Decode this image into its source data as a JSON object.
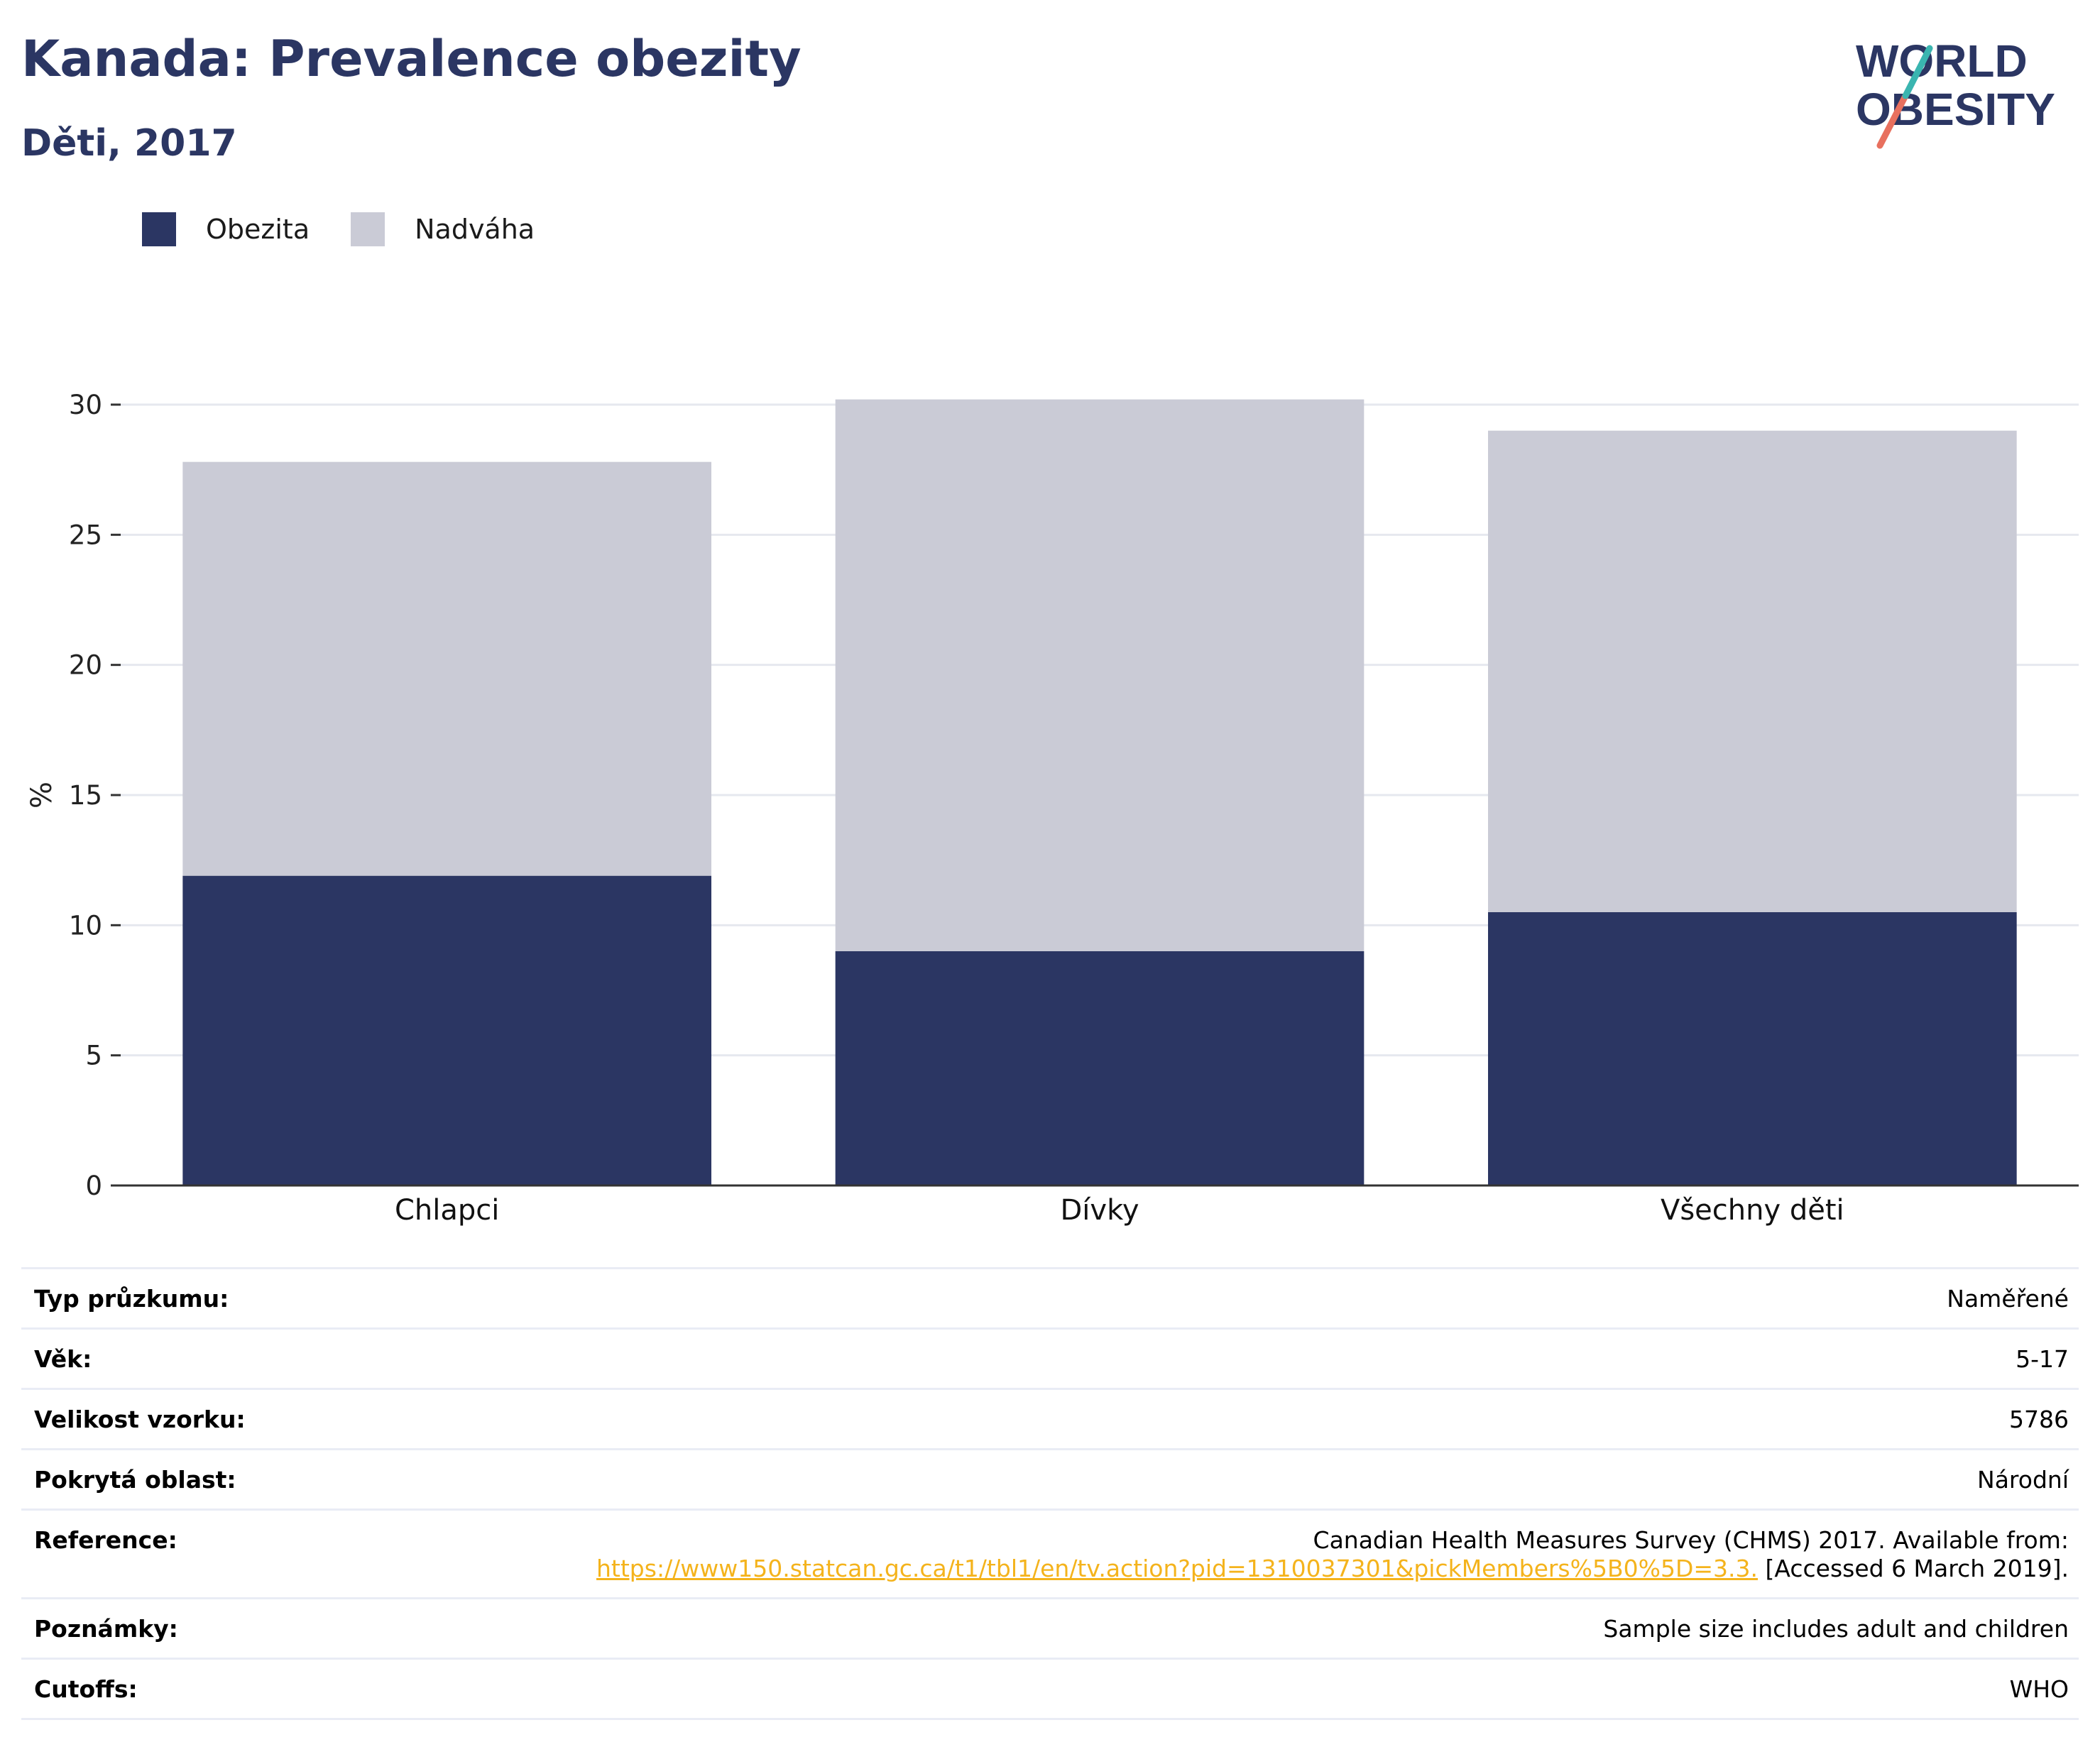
{
  "title": "Kanada: Prevalence obezity",
  "subtitle": "Děti, 2017",
  "logo": {
    "line1": "WORLD",
    "line2": "OBESITY"
  },
  "legend": [
    {
      "label": "Obezita",
      "color": "#2b3663"
    },
    {
      "label": "Nadváha",
      "color": "#cacbd6"
    }
  ],
  "chart_data": {
    "type": "bar",
    "stacked": true,
    "categories": [
      "Chlapci",
      "Dívky",
      "Všechny děti"
    ],
    "series": [
      {
        "name": "Obezita",
        "values": [
          11.9,
          9.0,
          10.5
        ],
        "color": "#2b3663"
      },
      {
        "name": "Nadváha",
        "values": [
          15.9,
          21.2,
          18.5
        ],
        "color": "#cacbd6"
      }
    ],
    "ylabel": "%",
    "ylim": [
      0,
      30
    ],
    "yticks": [
      0,
      5,
      10,
      15,
      20,
      25,
      30
    ],
    "grid": true,
    "legend_position": "top-left"
  },
  "info": {
    "survey_type": {
      "label": "Typ průzkumu:",
      "value": "Naměřené"
    },
    "age": {
      "label": "Věk:",
      "value": "5-17"
    },
    "sample_size": {
      "label": "Velikost vzorku:",
      "value": "5786"
    },
    "coverage": {
      "label": "Pokrytá oblast:",
      "value": "Národní"
    },
    "reference": {
      "label": "Reference:",
      "text": "Canadian Health Measures Survey (CHMS) 2017. Available from:",
      "link": "https://www150.statcan.gc.ca/t1/tbl1/en/tv.action?pid=1310037301&pickMembers%5B0%5D=3.3.",
      "suffix": " [Accessed 6 March 2019]."
    },
    "notes": {
      "label": "Poznámky:",
      "value": "Sample size includes adult and children"
    },
    "cutoffs": {
      "label": "Cutoffs:",
      "value": "WHO"
    }
  }
}
